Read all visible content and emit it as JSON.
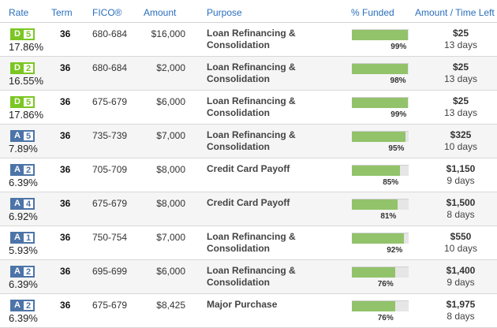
{
  "header": {
    "rate": "Rate",
    "term": "Term",
    "fico": "FICO®",
    "amount": "Amount",
    "purpose": "Purpose",
    "funded": "% Funded",
    "amount_time": "Amount / Time Left"
  },
  "colors": {
    "grade_D": "#7bc623",
    "grade_A": "#4c74a8",
    "link": "#2a6ebd",
    "bar_fill": "#92c36b"
  },
  "loans": [
    {
      "grade": "D",
      "sub": "5",
      "rate": "17.86%",
      "term": "36",
      "fico": "680-684",
      "amount": "$16,000",
      "purpose": "Loan Refinancing & Consolidation",
      "funded": 99,
      "funded_label": "99%",
      "remaining": "$25",
      "time_left": "13 days"
    },
    {
      "grade": "D",
      "sub": "2",
      "rate": "16.55%",
      "term": "36",
      "fico": "680-684",
      "amount": "$2,000",
      "purpose": "Loan Refinancing & Consolidation",
      "funded": 98,
      "funded_label": "98%",
      "remaining": "$25",
      "time_left": "13 days"
    },
    {
      "grade": "D",
      "sub": "5",
      "rate": "17.86%",
      "term": "36",
      "fico": "675-679",
      "amount": "$6,000",
      "purpose": "Loan Refinancing & Consolidation",
      "funded": 99,
      "funded_label": "99%",
      "remaining": "$25",
      "time_left": "13 days"
    },
    {
      "grade": "A",
      "sub": "5",
      "rate": "7.89%",
      "term": "36",
      "fico": "735-739",
      "amount": "$7,000",
      "purpose": "Loan Refinancing & Consolidation",
      "funded": 95,
      "funded_label": "95%",
      "remaining": "$325",
      "time_left": "10 days"
    },
    {
      "grade": "A",
      "sub": "2",
      "rate": "6.39%",
      "term": "36",
      "fico": "705-709",
      "amount": "$8,000",
      "purpose": "Credit Card Payoff",
      "funded": 85,
      "funded_label": "85%",
      "remaining": "$1,150",
      "time_left": "9 days"
    },
    {
      "grade": "A",
      "sub": "4",
      "rate": "6.92%",
      "term": "36",
      "fico": "675-679",
      "amount": "$8,000",
      "purpose": "Credit Card Payoff",
      "funded": 81,
      "funded_label": "81%",
      "remaining": "$1,500",
      "time_left": "8 days"
    },
    {
      "grade": "A",
      "sub": "1",
      "rate": "5.93%",
      "term": "36",
      "fico": "750-754",
      "amount": "$7,000",
      "purpose": "Loan Refinancing & Consolidation",
      "funded": 92,
      "funded_label": "92%",
      "remaining": "$550",
      "time_left": "10 days"
    },
    {
      "grade": "A",
      "sub": "2",
      "rate": "6.39%",
      "term": "36",
      "fico": "695-699",
      "amount": "$6,000",
      "purpose": "Loan Refinancing & Consolidation",
      "funded": 76,
      "funded_label": "76%",
      "remaining": "$1,400",
      "time_left": "9 days"
    },
    {
      "grade": "A",
      "sub": "2",
      "rate": "6.39%",
      "term": "36",
      "fico": "675-679",
      "amount": "$8,425",
      "purpose": "Major Purchase",
      "funded": 76,
      "funded_label": "76%",
      "remaining": "$1,975",
      "time_left": "8 days"
    }
  ]
}
